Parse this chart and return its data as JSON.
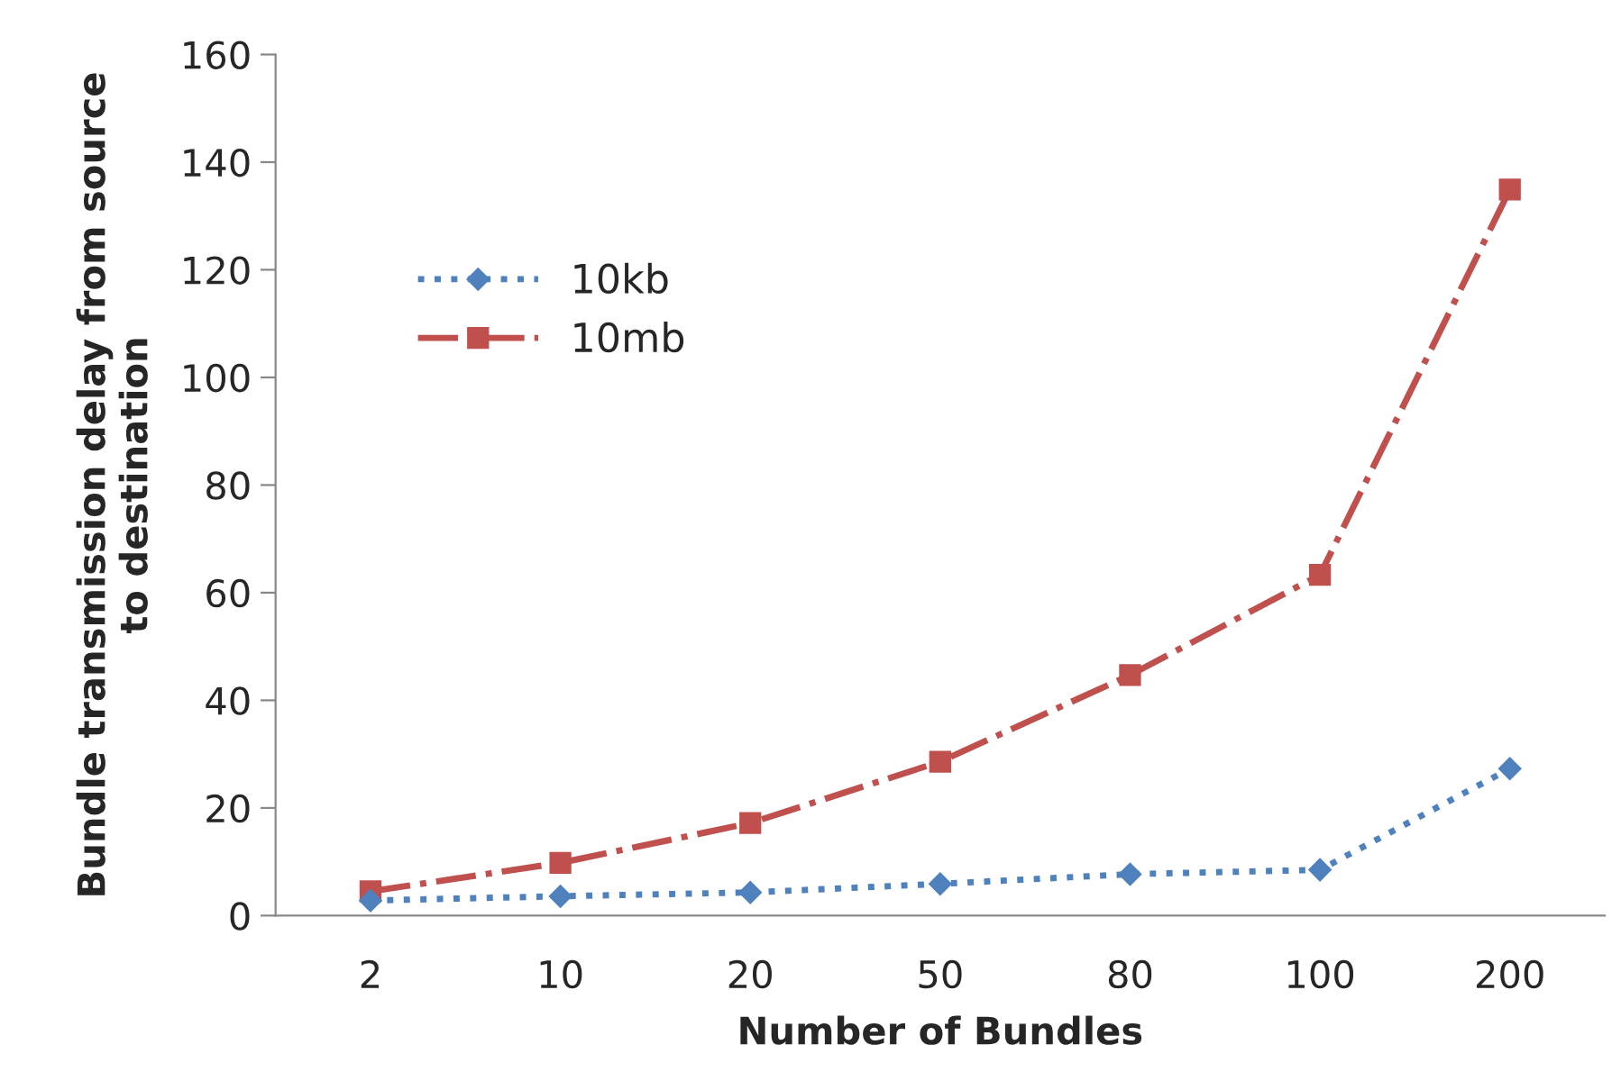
{
  "chart_data": {
    "type": "line",
    "xlabel": "Number of Bundles",
    "ylabel": "Bundle transmission delay from source\nto destination",
    "categories": [
      "2",
      "10",
      "20",
      "50",
      "80",
      "100",
      "200"
    ],
    "series": [
      {
        "name": "10kb",
        "color": "#4f81bd",
        "marker": "diamond",
        "line_style": "dotted",
        "values": [
          2.8,
          3.6,
          4.3,
          5.9,
          7.7,
          8.5,
          27.3
        ]
      },
      {
        "name": "10mb",
        "color": "#c0504d",
        "marker": "square",
        "line_style": "dashdot",
        "values": [
          4.5,
          9.8,
          17.2,
          28.6,
          44.7,
          63.3,
          134.9
        ]
      }
    ],
    "ylim": [
      0,
      160
    ],
    "yticks": [
      0,
      20,
      40,
      60,
      80,
      100,
      120,
      140,
      160
    ],
    "grid": false,
    "legend": "top left"
  }
}
